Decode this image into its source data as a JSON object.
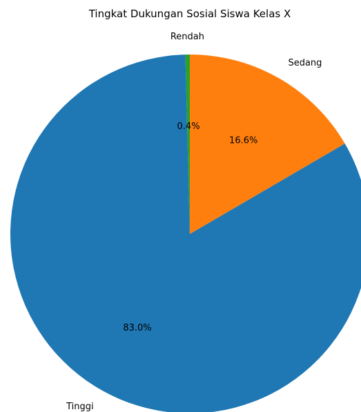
{
  "chart_data": {
    "type": "pie",
    "title": "Tingkat Dukungan Sosial Siswa Kelas X",
    "start_angle_deg": 90,
    "direction": "counterclockwise",
    "slices": [
      {
        "label": "Rendah",
        "value": 0.4,
        "pct_label": "0.4%",
        "color": "#2ca02c"
      },
      {
        "label": "Tinggi",
        "value": 83.0,
        "pct_label": "83.0%",
        "color": "#1f77b4"
      },
      {
        "label": "Sedang",
        "value": 16.6,
        "pct_label": "16.6%",
        "color": "#ff7f0e"
      }
    ]
  }
}
